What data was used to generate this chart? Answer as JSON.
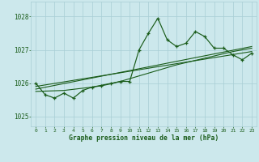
{
  "title": "Graphe pression niveau de la mer (hPa)",
  "background_color": "#cce8ec",
  "grid_color": "#a8ced4",
  "line_color": "#1a5c1a",
  "text_color": "#1a5c1a",
  "ylim": [
    1024.7,
    1028.45
  ],
  "xlim": [
    -0.5,
    23.5
  ],
  "yticks": [
    1025,
    1026,
    1027,
    1028
  ],
  "xticks": [
    0,
    1,
    2,
    3,
    4,
    5,
    6,
    7,
    8,
    9,
    10,
    11,
    12,
    13,
    14,
    15,
    16,
    17,
    18,
    19,
    20,
    21,
    22,
    23
  ],
  "main_line": [
    [
      0,
      1026.0
    ],
    [
      1,
      1025.65
    ],
    [
      2,
      1025.55
    ],
    [
      3,
      1025.7
    ],
    [
      4,
      1025.55
    ],
    [
      5,
      1025.78
    ],
    [
      6,
      1025.88
    ],
    [
      7,
      1025.92
    ],
    [
      8,
      1025.98
    ],
    [
      9,
      1026.05
    ],
    [
      10,
      1026.05
    ],
    [
      11,
      1027.0
    ],
    [
      12,
      1027.5
    ],
    [
      13,
      1027.95
    ],
    [
      14,
      1027.3
    ],
    [
      15,
      1027.1
    ],
    [
      16,
      1027.2
    ],
    [
      17,
      1027.55
    ],
    [
      18,
      1027.4
    ],
    [
      19,
      1027.05
    ],
    [
      20,
      1027.05
    ],
    [
      21,
      1026.85
    ],
    [
      22,
      1026.7
    ],
    [
      23,
      1026.9
    ]
  ],
  "trend_line1": [
    [
      0,
      1025.9
    ],
    [
      23,
      1026.95
    ]
  ],
  "trend_line2": [
    [
      0,
      1025.82
    ],
    [
      23,
      1027.1
    ]
  ],
  "envelope_line": [
    [
      0,
      1025.75
    ],
    [
      3,
      1025.78
    ],
    [
      6,
      1025.88
    ],
    [
      9,
      1026.05
    ],
    [
      12,
      1026.3
    ],
    [
      15,
      1026.55
    ],
    [
      18,
      1026.75
    ],
    [
      21,
      1026.95
    ],
    [
      23,
      1027.05
    ]
  ]
}
